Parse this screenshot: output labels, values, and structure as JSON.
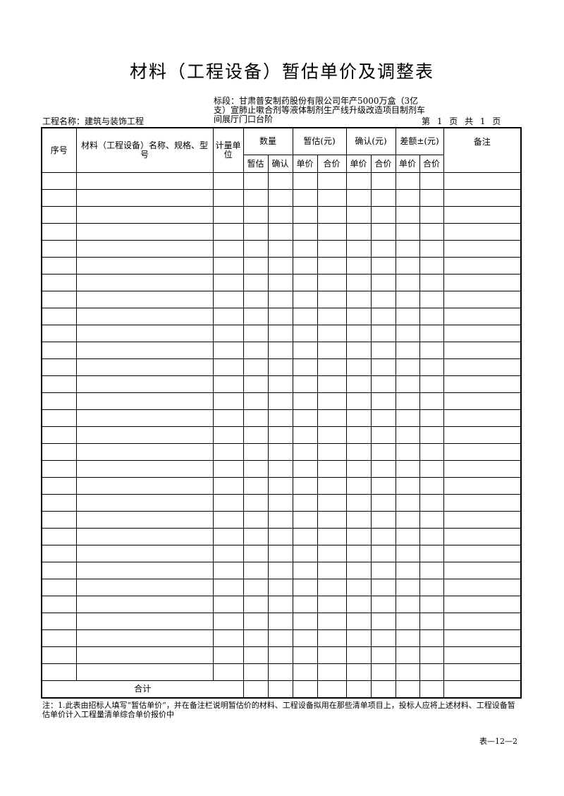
{
  "title": "材料（工程设备）暂估单价及调整表",
  "section": "标段：甘肃普安制药股份有限公司年产5000万盒（3亿支）宣肺止嗽合剂等液体制剂生产线升级改造项目制剂车间展厅门口台阶",
  "project_name": "工程名称：建筑与装饰工程",
  "page_info": "第 1 页 共 1 页",
  "table": {
    "headers": {
      "seq": "序号",
      "name": "材料（工程设备）名称、规格、型号",
      "unit": "计量单位",
      "quantity": "数量",
      "estimate": "暂估(元)",
      "confirm": "确认(元)",
      "diff": "差额±(元)",
      "remark": "备注"
    },
    "subheaders": [
      "暂估",
      "确认",
      "单价",
      "合价",
      "单价",
      "合价",
      "单价",
      "合价"
    ],
    "total_label": "合计"
  },
  "note": "注：1.此表由招标人填写“暂估单价”，并在备注栏说明暂估价的材料、工程设备拟用在那些清单项目上，投标人应将上述材料、工程设备暂估单价计入工程量清单综合单价报价中",
  "form_number": "表—12—2"
}
